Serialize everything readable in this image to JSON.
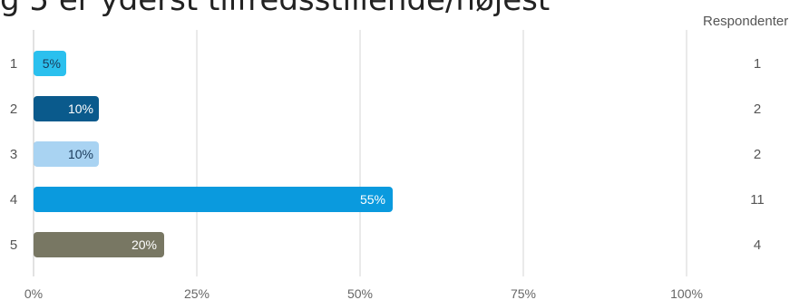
{
  "page": {
    "title": "g 5 er yderst tilfredsstillende/højest",
    "respondents_header": "Respondenter"
  },
  "chart_data": {
    "type": "bar",
    "orientation": "horizontal",
    "title": "g 5 er yderst tilfredsstillende/højest",
    "xlabel": "",
    "ylabel": "",
    "xlim": [
      0,
      100
    ],
    "grid": true,
    "x_ticks": [
      "0%",
      "25%",
      "50%",
      "75%",
      "100%"
    ],
    "categories": [
      "1",
      "2",
      "3",
      "4",
      "5"
    ],
    "values": [
      5,
      10,
      10,
      55,
      20
    ],
    "data_labels": [
      "5%",
      "10%",
      "10%",
      "55%",
      "20%"
    ],
    "respondents": [
      1,
      2,
      2,
      11,
      4
    ],
    "bar_colors": [
      "#2bc0ee",
      "#0a5a8c",
      "#a9d3f2",
      "#0a9ade",
      "#787763"
    ],
    "label_colors": [
      "#1a3a5a",
      "#ffffff",
      "#1a3a5a",
      "#ffffff",
      "#ffffff"
    ]
  }
}
